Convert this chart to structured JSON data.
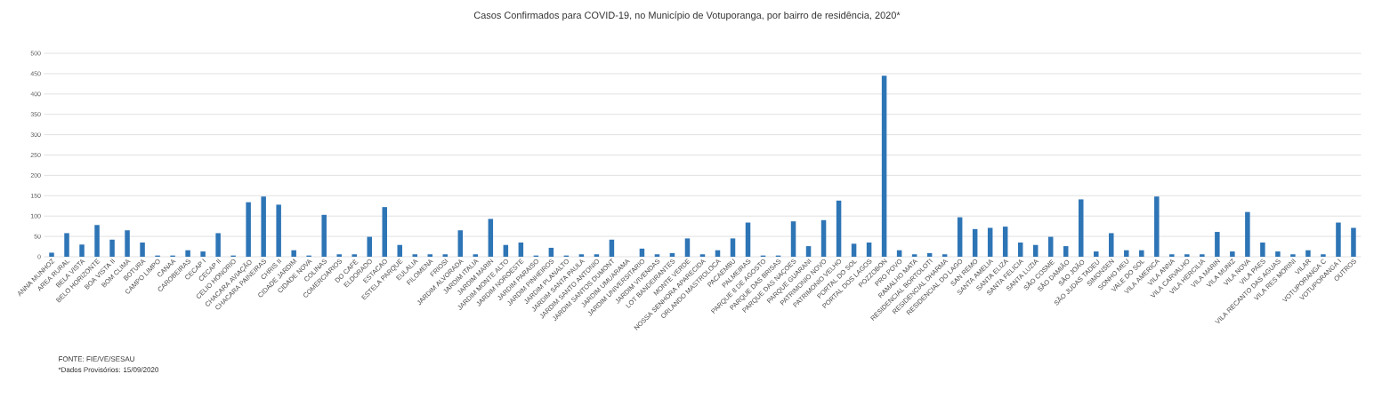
{
  "chart_data": {
    "type": "bar",
    "title": "Casos Confirmados para COVID-19,  no Município de Votuporanga, por bairro de residência, 2020*",
    "categories": [
      "ANNA MUNHOZ",
      "AREA RURAL",
      "BELA VISTA",
      "BELO HORIZONTE",
      "BOA VISTA II",
      "BOM CLIMA",
      "BOTURA",
      "CAMPO LIMPO",
      "CANAA",
      "CAROBEIRAS",
      "CECAP I",
      "CECAP II",
      "CELIO HONORIO",
      "CHACARA AVIAÇÃO",
      "CHACARA PAINEIRAS",
      "CHRIS II",
      "CIDADE JARDIM",
      "CIDADE NOVA",
      "COLINAS",
      "COMERCIARIOS",
      "DO CAFÉ",
      "ELDORADO",
      "ESTACAO",
      "ESTELA PARQUE",
      "EULALIA",
      "FILOMENA",
      "FRIOSI",
      "JARDIM ALVORADA",
      "JARDIM ITALIA",
      "JARDIM MARIN",
      "JARDIM MONTE ALTO",
      "JARDIM NOROESTE",
      "JARDIM PARAISO",
      "JARDIM PINHEIROS",
      "JARDIM PLANALTO",
      "JARDIM SANTA PAULA",
      "JARDIM SANTO ANTONIO",
      "JARDIM SANTOS DUMONT",
      "JARDIM UMUARAMA",
      "JARDIM UNIVERSITARIO",
      "JARDIM VIVENDAS",
      "LOT BANDEIRANTES",
      "MONTE VERDE",
      "NOSSA SENHORA APARECIDA",
      "ORLANDO MASTROLOCA",
      "PACAEMBU",
      "PALMEIRAS",
      "PARQUE 8 DE AGOSTO",
      "PARQUE DAS BRISAS",
      "PARQUE DAS NAÇOES",
      "PARQUE GUARANI",
      "PATRIMONIO NOVO",
      "PATRIMONIO VELHO",
      "PORTAL DO SOL",
      "PORTAL DOS LAGOS",
      "POZZOBON",
      "PRO POVO",
      "RAMALHO MATA",
      "RESIDENCIAL BORTOLOTI",
      "RESIDENCIAL DHARMA",
      "RESIDENCIAL DO LAGO",
      "SAN REMO",
      "SANTA AMELIA",
      "SANTA ELIZA",
      "SANTA FELICIA",
      "SANTA LUZIA",
      "SÃO COSME",
      "SÃO DAMIÃO",
      "SÃO JOÃO",
      "SÃO JUDAS TADEU",
      "SIMONSEN",
      "SONHO MEU",
      "VALE DO SOL",
      "VILA AMERICA",
      "VILA ANNA",
      "VILA CARVALHO",
      "VILA HERCILIA",
      "VILA MARIN",
      "VILA MUNIZ",
      "VILA NOVA",
      "VILA PAES",
      "VILA RECANTO DAS AGUAS",
      "VILA RES MORINI",
      "VILAR",
      "VOTUPORANGA C",
      "VOTUPORANGA I",
      "OUTROS"
    ],
    "values": [
      10,
      58,
      30,
      78,
      42,
      65,
      35,
      3,
      3,
      16,
      13,
      58,
      3,
      134,
      148,
      128,
      16,
      3,
      103,
      6,
      6,
      49,
      122,
      29,
      6,
      6,
      6,
      65,
      6,
      93,
      29,
      35,
      3,
      22,
      3,
      6,
      6,
      42,
      0,
      20,
      6,
      9,
      45,
      6,
      16,
      45,
      84,
      3,
      3,
      87,
      26,
      90,
      138,
      32,
      35,
      445,
      16,
      6,
      9,
      6,
      97,
      68,
      71,
      74,
      35,
      29,
      49,
      26,
      141,
      13,
      58,
      16,
      16,
      148,
      6,
      6,
      6,
      61,
      13,
      110,
      35,
      13,
      6,
      16,
      6,
      84,
      71
    ],
    "color": "#2e75b6",
    "ylim": [
      0,
      500
    ],
    "yticks": [
      0,
      50,
      100,
      150,
      200,
      250,
      300,
      350,
      400,
      450,
      500
    ],
    "grid": "y",
    "annotations": [
      "FONTE: FIE/VE/SESAU",
      "*Dados Provisórios: 15/09/2020"
    ]
  }
}
